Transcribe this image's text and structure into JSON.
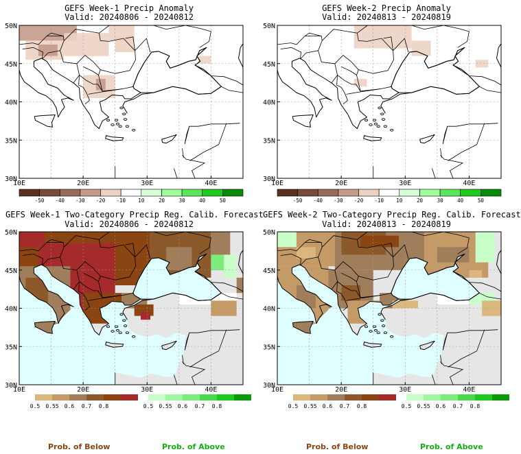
{
  "colors": {
    "ocean_neutral": "#e0ffff",
    "land_neutral": "#e6e6e6",
    "below_ramp": [
      "#d9b77d",
      "#c49a66",
      "#a07d5b",
      "#8c5a2a",
      "#8b4513",
      "#a52a2a"
    ],
    "above_ramp": [
      "#c8ffc8",
      "#a0f5a0",
      "#7cec7c",
      "#4cd84c",
      "#1ec81e",
      "#0a9a0a"
    ],
    "anomaly_ramp": [
      "#5a3020",
      "#7a4a3a",
      "#9a6a5a",
      "#c49a8a",
      "#ecd2c2",
      "#ffffff",
      "#d7ffd7",
      "#a0ff9a",
      "#5ae65a",
      "#20c820",
      "#088c08"
    ],
    "below_caption": "#8b4513",
    "above_caption": "#10b010"
  },
  "panels": [
    {
      "id": "w1-anom",
      "title": "GEFS Week-1 Precip Anomaly",
      "valid": "Valid: 20240806 - 20240812",
      "type": "anomaly",
      "lat_labels": [
        "50N",
        "45N",
        "40N",
        "35N",
        "30N"
      ],
      "lon_labels": [
        "10E",
        "20E",
        "30E",
        "40E"
      ],
      "colorbar": [
        "-50",
        "-40",
        "-30",
        "-20",
        "-10",
        "10",
        "20",
        "30",
        "40",
        "50"
      ],
      "patches": [
        {
          "lon": [
            10,
            19
          ],
          "lat": [
            48,
            50
          ],
          "level": 3
        },
        {
          "lon": [
            11,
            17
          ],
          "lat": [
            45.5,
            48
          ],
          "level": 4
        },
        {
          "lon": [
            13,
            16
          ],
          "lat": [
            46,
            47.5
          ],
          "level": 3
        },
        {
          "lon": [
            17,
            24
          ],
          "lat": [
            46,
            49
          ],
          "level": 4
        },
        {
          "lon": [
            20,
            25
          ],
          "lat": [
            40.5,
            43.5
          ],
          "level": 4
        },
        {
          "lon": [
            22,
            23.5
          ],
          "lat": [
            41.5,
            43
          ],
          "level": 3
        },
        {
          "lon": [
            24,
            28
          ],
          "lat": [
            48,
            50
          ],
          "level": 4
        },
        {
          "lon": [
            25,
            28
          ],
          "lat": [
            46.5,
            48.5
          ],
          "level": 4
        },
        {
          "lon": [
            38,
            40
          ],
          "lat": [
            45,
            46
          ],
          "level": 4
        }
      ]
    },
    {
      "id": "w2-anom",
      "title": "GEFS Week-2 Precip Anomaly",
      "valid": "Valid: 20240813 - 20240819",
      "type": "anomaly",
      "lat_labels": [
        "50N",
        "45N",
        "40N",
        "35N",
        "30N"
      ],
      "lon_labels": [
        "10E",
        "20E",
        "30E",
        "40E"
      ],
      "colorbar": [
        "-50",
        "-40",
        "-30",
        "-20",
        "-10",
        "10",
        "20",
        "30",
        "40",
        "50"
      ],
      "patches": [
        {
          "lon": [
            22,
            31
          ],
          "lat": [
            47,
            50
          ],
          "level": 4
        },
        {
          "lon": [
            22,
            24
          ],
          "lat": [
            42,
            43
          ],
          "level": 4
        },
        {
          "lon": [
            31,
            34
          ],
          "lat": [
            46,
            48
          ],
          "level": 4
        },
        {
          "lon": [
            41,
            43
          ],
          "lat": [
            44.5,
            45.5
          ],
          "level": 4
        }
      ]
    },
    {
      "id": "w1-prob",
      "title": "GEFS Week-1 Two-Category Precip Reg. Calib. Forecast",
      "valid": "Valid: 20240806 - 20240812",
      "type": "prob",
      "lat_labels": [
        "50N",
        "45N",
        "40N",
        "35N",
        "30N"
      ],
      "lon_labels": [
        "10E",
        "20E",
        "30E",
        "40E"
      ],
      "colorbar_below": [
        "0.5",
        "0.55",
        "0.6",
        "0.7",
        "0.8"
      ],
      "colorbar_above": [
        "0.5",
        "0.55",
        "0.6",
        "0.7",
        "0.8"
      ],
      "patches": [
        {
          "lon": [
            10,
            30.5
          ],
          "lat": [
            43,
            50
          ],
          "c": "#8b4513"
        },
        {
          "lon": [
            30.5,
            40
          ],
          "lat": [
            44,
            50
          ],
          "c": "#8c5a2a"
        },
        {
          "lon": [
            33,
            37
          ],
          "lat": [
            45,
            48
          ],
          "c": "#a07d5b"
        },
        {
          "lon": [
            40,
            43
          ],
          "lat": [
            45,
            50
          ],
          "c": "#a07d5b"
        },
        {
          "lon": [
            40,
            42
          ],
          "lat": [
            45,
            47
          ],
          "c": "#7cec7c"
        },
        {
          "lon": [
            42,
            44
          ],
          "lat": [
            44,
            47
          ],
          "c": "#c8ffc8"
        },
        {
          "lon": [
            13,
            25
          ],
          "lat": [
            41,
            48.5
          ],
          "c": "#a52a2a"
        },
        {
          "lon": [
            10,
            14
          ],
          "lat": [
            48,
            50
          ],
          "c": "#a52a2a"
        },
        {
          "lon": [
            18.5,
            22
          ],
          "lat": [
            38.5,
            41
          ],
          "c": "#a52a2a"
        },
        {
          "lon": [
            10,
            18
          ],
          "lat": [
            37.5,
            45.5
          ],
          "c": "#a07d5b"
        },
        {
          "lon": [
            11,
            14.5
          ],
          "lat": [
            40,
            44
          ],
          "c": "#8c5a2a"
        },
        {
          "lon": [
            20,
            26
          ],
          "lat": [
            38,
            42
          ],
          "c": "#8b4513"
        },
        {
          "lon": [
            26,
            30
          ],
          "lat": [
            40,
            42
          ],
          "c": "#a07d5b"
        },
        {
          "lon": [
            28,
            31
          ],
          "lat": [
            39,
            40.5
          ],
          "c": "#8b4513"
        },
        {
          "lon": [
            29,
            30.5
          ],
          "lat": [
            38.5,
            39.5
          ],
          "c": "#a52a2a"
        },
        {
          "lon": [
            35,
            44
          ],
          "lat": [
            40.5,
            42
          ],
          "c": "#ffffff"
        },
        {
          "lon": [
            40,
            44
          ],
          "lat": [
            39,
            41
          ],
          "c": "#c49a66"
        },
        {
          "lon": [
            44,
            45
          ],
          "lat": [
            42,
            44
          ],
          "c": "#a07d5b"
        }
      ]
    },
    {
      "id": "w2-prob",
      "title": "GEFS Week-2 Two-Category Precip Reg. Calib. Forecast",
      "valid": "Valid: 20240813 - 20240819",
      "type": "prob",
      "lat_labels": [
        "50N",
        "45N",
        "40N",
        "35N",
        "30N"
      ],
      "lon_labels": [
        "10E",
        "20E",
        "30E",
        "40E"
      ],
      "colorbar_below": [
        "0.5",
        "0.55",
        "0.6",
        "0.7",
        "0.8"
      ],
      "colorbar_above": [
        "0.5",
        "0.55",
        "0.6",
        "0.7",
        "0.8"
      ],
      "patches": [
        {
          "lon": [
            10,
            19
          ],
          "lat": [
            45.5,
            50
          ],
          "c": "#c49a66"
        },
        {
          "lon": [
            10,
            13
          ],
          "lat": [
            48,
            50
          ],
          "c": "#c8ffc8"
        },
        {
          "lon": [
            13,
            16
          ],
          "lat": [
            46.5,
            48
          ],
          "c": "#d9b77d"
        },
        {
          "lon": [
            19,
            33
          ],
          "lat": [
            45,
            50
          ],
          "c": "#a07d5b"
        },
        {
          "lon": [
            20,
            27
          ],
          "lat": [
            47,
            50
          ],
          "c": "#8c5a2a"
        },
        {
          "lon": [
            23,
            29
          ],
          "lat": [
            48,
            49.5
          ],
          "c": "#8b4513"
        },
        {
          "lon": [
            33,
            43
          ],
          "lat": [
            44,
            50
          ],
          "c": "#c49a66"
        },
        {
          "lon": [
            35,
            40
          ],
          "lat": [
            46,
            48
          ],
          "c": "#a07d5b"
        },
        {
          "lon": [
            41,
            44
          ],
          "lat": [
            46,
            50
          ],
          "c": "#c8ffc8"
        },
        {
          "lon": [
            40,
            42
          ],
          "lat": [
            44,
            45
          ],
          "c": "#d9b77d"
        },
        {
          "lon": [
            10,
            18
          ],
          "lat": [
            37.5,
            45.5
          ],
          "c": "#c49a66"
        },
        {
          "lon": [
            13,
            16
          ],
          "lat": [
            40,
            43
          ],
          "c": "#a07d5b"
        },
        {
          "lon": [
            18,
            25
          ],
          "lat": [
            40,
            45
          ],
          "c": "#a07d5b"
        },
        {
          "lon": [
            20,
            23
          ],
          "lat": [
            41,
            43
          ],
          "c": "#8c5a2a"
        },
        {
          "lon": [
            21,
            26
          ],
          "lat": [
            38,
            41
          ],
          "c": "#c49a66"
        },
        {
          "lon": [
            26,
            30
          ],
          "lat": [
            40,
            42
          ],
          "c": "#a07d5b"
        },
        {
          "lon": [
            28,
            32
          ],
          "lat": [
            40,
            41
          ],
          "c": "#d9b77d"
        },
        {
          "lon": [
            35,
            44
          ],
          "lat": [
            40.5,
            42
          ],
          "c": "#ffffff"
        },
        {
          "lon": [
            40,
            44
          ],
          "lat": [
            40.5,
            42
          ],
          "c": "#c8ffc8"
        },
        {
          "lon": [
            42,
            45
          ],
          "lat": [
            39,
            41
          ],
          "c": "#d9b77d"
        }
      ]
    }
  ],
  "captions": {
    "left_below": "Prob. of Below",
    "left_above": "Prob. of Above",
    "right_below": "Prob. of Below",
    "right_above": "Prob. of Above"
  }
}
